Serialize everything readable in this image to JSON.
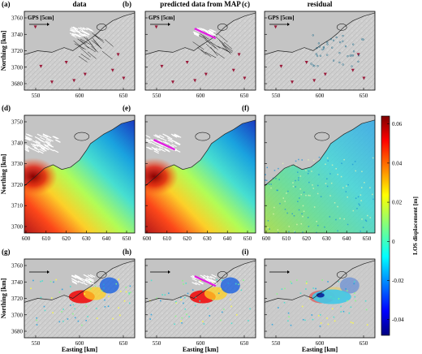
{
  "panels": [
    {
      "letter": "(a)",
      "title": "data",
      "gps_label": "GPS [5cm]"
    },
    {
      "letter": "(b)",
      "title": "predicted data from MAP",
      "gps_label": "GPS [5cm]"
    },
    {
      "letter": "(c)",
      "title": "residual",
      "gps_label": "GPS [5cm]"
    },
    {
      "letter": "(d)"
    },
    {
      "letter": "(e)"
    },
    {
      "letter": "(f)"
    },
    {
      "letter": "(g)"
    },
    {
      "letter": "(h)"
    },
    {
      "letter": "(i)"
    }
  ],
  "axes": {
    "ylabel": "Northing [km]",
    "xlabel": "Easting [km]",
    "row1_yticks": [
      "3760",
      "3740",
      "3720",
      "3700",
      "3680"
    ],
    "row1_xticks": [
      "550",
      "600",
      "650"
    ],
    "row2_yticks": [
      "3750",
      "3740",
      "3730",
      "3720",
      "3710",
      "3700"
    ],
    "row2_xticks": [
      "600",
      "610",
      "620",
      "630",
      "640",
      "650"
    ],
    "row3_yticks": [
      "3760",
      "3740",
      "3720",
      "3700",
      "3680"
    ],
    "row3_xticks": [
      "550",
      "600",
      "650"
    ]
  },
  "colorbar": {
    "label": "LOS displacement [m]",
    "ticks": [
      "0.06",
      "0.04",
      "0.02",
      "0",
      "-0.02",
      "-0.04"
    ],
    "range": [
      -0.048,
      0.064
    ],
    "colormap": "jet"
  },
  "colors": {
    "land": "#c4c4c4",
    "gps_arrow": "#ffffff",
    "model_arrow": "#e020e0",
    "station": "#9a1a3a"
  }
}
